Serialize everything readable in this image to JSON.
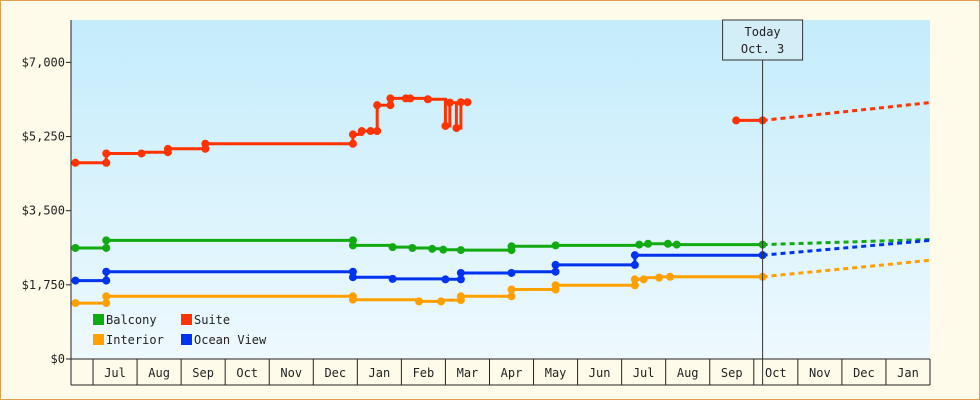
{
  "chart_data": {
    "type": "line",
    "title": "",
    "xlabel": "",
    "ylabel": "",
    "ylim": [
      0,
      8000
    ],
    "y_ticks": [
      0,
      1750,
      3500,
      5250,
      7000
    ],
    "y_tick_labels": [
      "$0",
      "$1,750",
      "$3,500",
      "$5,250",
      "$7,000"
    ],
    "x_range": [
      0,
      19.5
    ],
    "x_tick_labels": [
      "Jul",
      "Aug",
      "Sep",
      "Oct",
      "Nov",
      "Dec",
      "Jan",
      "Feb",
      "Mar",
      "Apr",
      "May",
      "Jun",
      "Jul",
      "Aug",
      "Sep",
      "Oct",
      "Nov",
      "Dec",
      "Jan"
    ],
    "grid": false,
    "legend_position": "bottom-left",
    "annotation": {
      "line1": "Today",
      "line2": "Oct. 3",
      "x": 15.7
    },
    "series": [
      {
        "name": "Balcony",
        "color": "#11aa11",
        "values": [
          [
            0.1,
            2620
          ],
          [
            0.8,
            2620
          ],
          [
            0.8,
            2800
          ],
          [
            6.4,
            2800
          ],
          [
            6.4,
            2680
          ],
          [
            7.3,
            2680
          ],
          [
            7.3,
            2640
          ],
          [
            7.75,
            2640
          ],
          [
            7.75,
            2620
          ],
          [
            8.2,
            2620
          ],
          [
            8.2,
            2600
          ],
          [
            8.45,
            2600
          ],
          [
            8.45,
            2580
          ],
          [
            8.85,
            2580
          ],
          [
            8.85,
            2570
          ],
          [
            10.0,
            2570
          ],
          [
            10.0,
            2660
          ],
          [
            11.0,
            2660
          ],
          [
            11.0,
            2680
          ],
          [
            12.9,
            2680
          ],
          [
            12.9,
            2700
          ],
          [
            13.1,
            2700
          ],
          [
            13.1,
            2720
          ],
          [
            13.55,
            2720
          ],
          [
            13.55,
            2700
          ],
          [
            15.7,
            2700
          ]
        ],
        "markers": [
          [
            0.1,
            2620
          ],
          [
            0.8,
            2620
          ],
          [
            0.8,
            2800
          ],
          [
            6.4,
            2800
          ],
          [
            6.4,
            2680
          ],
          [
            7.3,
            2640
          ],
          [
            7.75,
            2620
          ],
          [
            8.2,
            2600
          ],
          [
            8.45,
            2580
          ],
          [
            8.85,
            2570
          ],
          [
            10.0,
            2570
          ],
          [
            10.0,
            2660
          ],
          [
            11.0,
            2680
          ],
          [
            12.9,
            2700
          ],
          [
            13.1,
            2720
          ],
          [
            13.55,
            2720
          ],
          [
            13.75,
            2700
          ],
          [
            15.7,
            2700
          ]
        ],
        "projection": [
          [
            15.7,
            2700
          ],
          [
            19.5,
            2820
          ]
        ]
      },
      {
        "name": "Suite",
        "color": "#ff3300",
        "values": [
          [
            0.1,
            4630
          ],
          [
            0.8,
            4630
          ],
          [
            0.8,
            4850
          ],
          [
            1.6,
            4850
          ],
          [
            1.6,
            4880
          ],
          [
            2.2,
            4880
          ],
          [
            2.2,
            4960
          ],
          [
            3.05,
            4960
          ],
          [
            3.05,
            5080
          ],
          [
            6.4,
            5080
          ],
          [
            6.4,
            5300
          ],
          [
            6.6,
            5300
          ],
          [
            6.6,
            5380
          ],
          [
            6.95,
            5380
          ],
          [
            6.95,
            5990
          ],
          [
            7.25,
            5990
          ],
          [
            7.25,
            6150
          ],
          [
            8.1,
            6150
          ],
          [
            8.1,
            6130
          ],
          [
            8.5,
            6130
          ],
          [
            8.5,
            5500
          ],
          [
            8.6,
            5500
          ],
          [
            8.6,
            6050
          ],
          [
            8.75,
            6050
          ],
          [
            8.75,
            5450
          ],
          [
            8.85,
            5450
          ],
          [
            8.85,
            6060
          ],
          [
            9.0,
            6060
          ]
        ],
        "markers": [
          [
            0.1,
            4630
          ],
          [
            0.8,
            4630
          ],
          [
            0.8,
            4850
          ],
          [
            1.6,
            4850
          ],
          [
            2.2,
            4880
          ],
          [
            2.2,
            4960
          ],
          [
            3.05,
            4960
          ],
          [
            3.05,
            5080
          ],
          [
            6.4,
            5080
          ],
          [
            6.4,
            5300
          ],
          [
            6.6,
            5380
          ],
          [
            6.8,
            5380
          ],
          [
            6.95,
            5380
          ],
          [
            6.95,
            5990
          ],
          [
            7.25,
            5990
          ],
          [
            7.25,
            6150
          ],
          [
            7.6,
            6150
          ],
          [
            7.7,
            6150
          ],
          [
            8.1,
            6130
          ],
          [
            8.5,
            5500
          ],
          [
            8.6,
            6050
          ],
          [
            8.75,
            5450
          ],
          [
            8.85,
            6060
          ],
          [
            9.0,
            6060
          ]
        ],
        "segment2": [
          [
            15.1,
            5630
          ],
          [
            15.7,
            5630
          ]
        ],
        "segment2_markers": [
          [
            15.1,
            5630
          ],
          [
            15.7,
            5630
          ]
        ],
        "projection": [
          [
            15.7,
            5630
          ],
          [
            19.5,
            6050
          ]
        ]
      },
      {
        "name": "Interior",
        "color": "#ffa000",
        "values": [
          [
            0.1,
            1320
          ],
          [
            0.8,
            1320
          ],
          [
            0.8,
            1480
          ],
          [
            6.4,
            1480
          ],
          [
            6.4,
            1400
          ],
          [
            7.9,
            1400
          ],
          [
            7.9,
            1360
          ],
          [
            8.4,
            1360
          ],
          [
            8.4,
            1390
          ],
          [
            8.85,
            1390
          ],
          [
            8.85,
            1480
          ],
          [
            10.0,
            1480
          ],
          [
            10.0,
            1640
          ],
          [
            11.0,
            1640
          ],
          [
            11.0,
            1740
          ],
          [
            12.8,
            1740
          ],
          [
            12.8,
            1880
          ],
          [
            13.0,
            1880
          ],
          [
            13.0,
            1920
          ],
          [
            13.35,
            1920
          ],
          [
            13.35,
            1940
          ],
          [
            15.7,
            1940
          ]
        ],
        "markers": [
          [
            0.1,
            1320
          ],
          [
            0.8,
            1320
          ],
          [
            0.8,
            1480
          ],
          [
            6.4,
            1480
          ],
          [
            6.4,
            1400
          ],
          [
            7.9,
            1360
          ],
          [
            8.4,
            1360
          ],
          [
            8.85,
            1390
          ],
          [
            8.85,
            1480
          ],
          [
            10.0,
            1480
          ],
          [
            10.0,
            1640
          ],
          [
            11.0,
            1640
          ],
          [
            11.0,
            1740
          ],
          [
            12.8,
            1740
          ],
          [
            12.8,
            1880
          ],
          [
            13.0,
            1880
          ],
          [
            13.35,
            1920
          ],
          [
            13.6,
            1940
          ],
          [
            15.7,
            1940
          ]
        ],
        "projection": [
          [
            15.7,
            1940
          ],
          [
            19.5,
            2330
          ]
        ]
      },
      {
        "name": "Ocean View",
        "color": "#0033ee",
        "values": [
          [
            0.1,
            1850
          ],
          [
            0.8,
            1850
          ],
          [
            0.8,
            2060
          ],
          [
            6.4,
            2060
          ],
          [
            6.4,
            1930
          ],
          [
            7.3,
            1930
          ],
          [
            7.3,
            1890
          ],
          [
            8.5,
            1890
          ],
          [
            8.5,
            1880
          ],
          [
            8.85,
            1880
          ],
          [
            8.85,
            2030
          ],
          [
            10.0,
            2030
          ],
          [
            10.0,
            2060
          ],
          [
            11.0,
            2060
          ],
          [
            11.0,
            2220
          ],
          [
            12.8,
            2220
          ],
          [
            12.8,
            2450
          ],
          [
            15.7,
            2450
          ]
        ],
        "markers": [
          [
            0.1,
            1850
          ],
          [
            0.8,
            1850
          ],
          [
            0.8,
            2060
          ],
          [
            6.4,
            2060
          ],
          [
            6.4,
            1930
          ],
          [
            7.3,
            1890
          ],
          [
            8.5,
            1880
          ],
          [
            8.85,
            1880
          ],
          [
            8.85,
            2030
          ],
          [
            10.0,
            2030
          ],
          [
            11.0,
            2060
          ],
          [
            11.0,
            2220
          ],
          [
            12.8,
            2220
          ],
          [
            12.8,
            2450
          ],
          [
            15.7,
            2450
          ]
        ],
        "projection": [
          [
            15.7,
            2450
          ],
          [
            19.5,
            2800
          ]
        ]
      }
    ]
  }
}
